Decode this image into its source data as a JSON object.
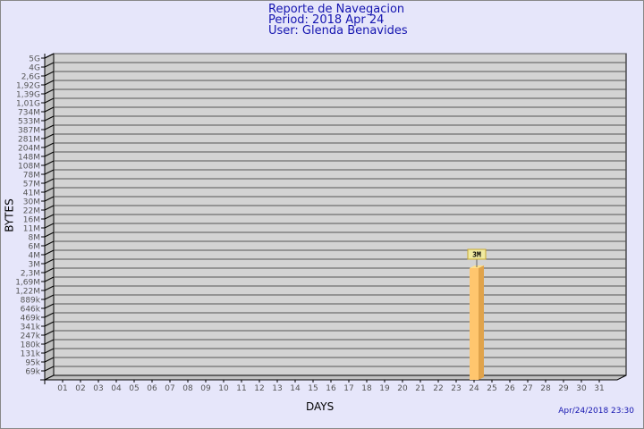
{
  "header": {
    "title": "Reporte de Navegacion",
    "period": "Period: 2018 Apr 24",
    "user": "User: Glenda Benavides"
  },
  "timestamp": "Apr/24/2018 23:30",
  "chart_data": {
    "type": "bar",
    "xlabel": "DAYS",
    "ylabel": "BYTES",
    "y_scale": "log",
    "y_ticks": [
      "5G",
      "4G",
      "2,6G",
      "1,92G",
      "1,39G",
      "1,01G",
      "734M",
      "533M",
      "387M",
      "281M",
      "204M",
      "148M",
      "108M",
      "78M",
      "57M",
      "41M",
      "30M",
      "22M",
      "16M",
      "11M",
      "8M",
      "6M",
      "4M",
      "3M",
      "2,3M",
      "1,69M",
      "1,22M",
      "889k",
      "646k",
      "469k",
      "341k",
      "247k",
      "180k",
      "131k",
      "95k",
      "69k"
    ],
    "categories": [
      "01",
      "02",
      "03",
      "04",
      "05",
      "06",
      "07",
      "08",
      "09",
      "10",
      "11",
      "12",
      "13",
      "14",
      "15",
      "16",
      "17",
      "18",
      "19",
      "20",
      "21",
      "22",
      "23",
      "24",
      "25",
      "26",
      "27",
      "28",
      "29",
      "30",
      "31"
    ],
    "values": [
      0,
      0,
      0,
      0,
      0,
      0,
      0,
      0,
      0,
      0,
      0,
      0,
      0,
      0,
      0,
      0,
      0,
      0,
      0,
      0,
      0,
      0,
      0,
      3,
      0,
      0,
      0,
      0,
      0,
      0,
      0
    ],
    "value_unit": "M",
    "data_labels": {
      "24": "3M"
    },
    "grid": true,
    "colors": {
      "bar": "#ffc66e",
      "bar_side": "#e0a34b",
      "bar_top": "#ffe08a",
      "wall": "#d3d3d3",
      "label_box": "#f0eaa0"
    }
  }
}
